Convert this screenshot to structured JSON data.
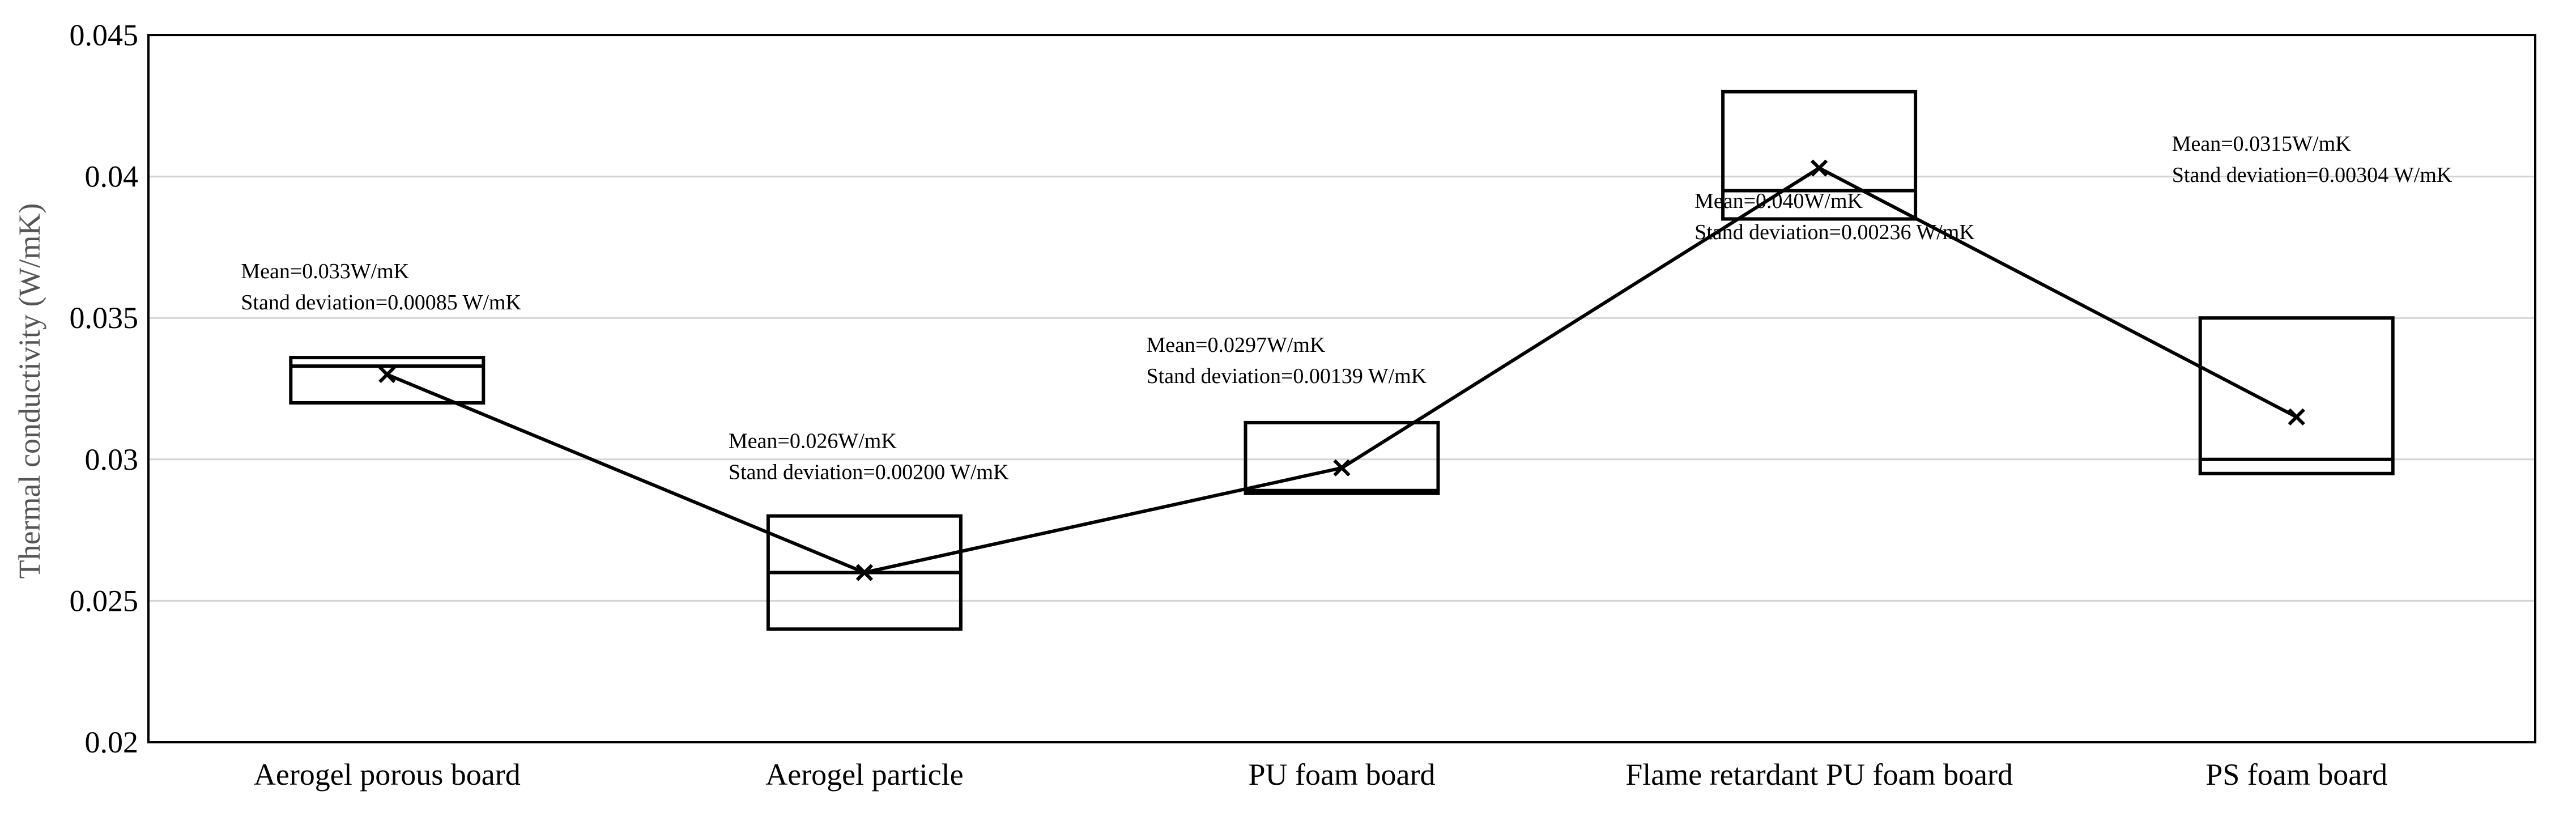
{
  "chart_data": {
    "type": "box",
    "title": "",
    "xlabel": "",
    "ylabel": "Thermal conductivity (W/mK)",
    "ylim": [
      0.02,
      0.045
    ],
    "yticks": [
      0.02,
      0.025,
      0.03,
      0.035,
      0.04,
      0.045
    ],
    "ytick_labels": [
      "0.02",
      "0.025",
      "0.03",
      "0.035",
      "0.04",
      "0.045"
    ],
    "grid": "horizontal",
    "categories": [
      "Aerogel porous board",
      "Aerogel particle",
      "PU foam board",
      "Flame retardant PU foam board",
      "PS foam board"
    ],
    "boxes": [
      {
        "q1": 0.032,
        "median": 0.0333,
        "q3": 0.0336,
        "mean": 0.033
      },
      {
        "q1": 0.024,
        "median": 0.026,
        "q3": 0.028,
        "mean": 0.026
      },
      {
        "q1": 0.0288,
        "median": 0.0289,
        "q3": 0.0313,
        "mean": 0.0297
      },
      {
        "q1": 0.0385,
        "median": 0.0395,
        "q3": 0.043,
        "mean": 0.0403
      },
      {
        "q1": 0.0295,
        "median": 0.03,
        "q3": 0.035,
        "mean": 0.0315
      }
    ],
    "annotations": [
      {
        "lines": [
          "Mean=0.033W/mK",
          "Stand deviation=0.00085 W/mK"
        ]
      },
      {
        "lines": [
          "Mean=0.026W/mK",
          "Stand deviation=0.00200 W/mK"
        ]
      },
      {
        "lines": [
          "Mean=0.0297W/mK",
          "Stand deviation=0.00139 W/mK"
        ]
      },
      {
        "lines": [
          "Mean=0.040W/mK",
          "Stand deviation=0.00236 W/mK"
        ]
      },
      {
        "lines": [
          "Mean=0.0315W/mK",
          "Stand deviation=0.00304 W/mK"
        ]
      }
    ]
  }
}
